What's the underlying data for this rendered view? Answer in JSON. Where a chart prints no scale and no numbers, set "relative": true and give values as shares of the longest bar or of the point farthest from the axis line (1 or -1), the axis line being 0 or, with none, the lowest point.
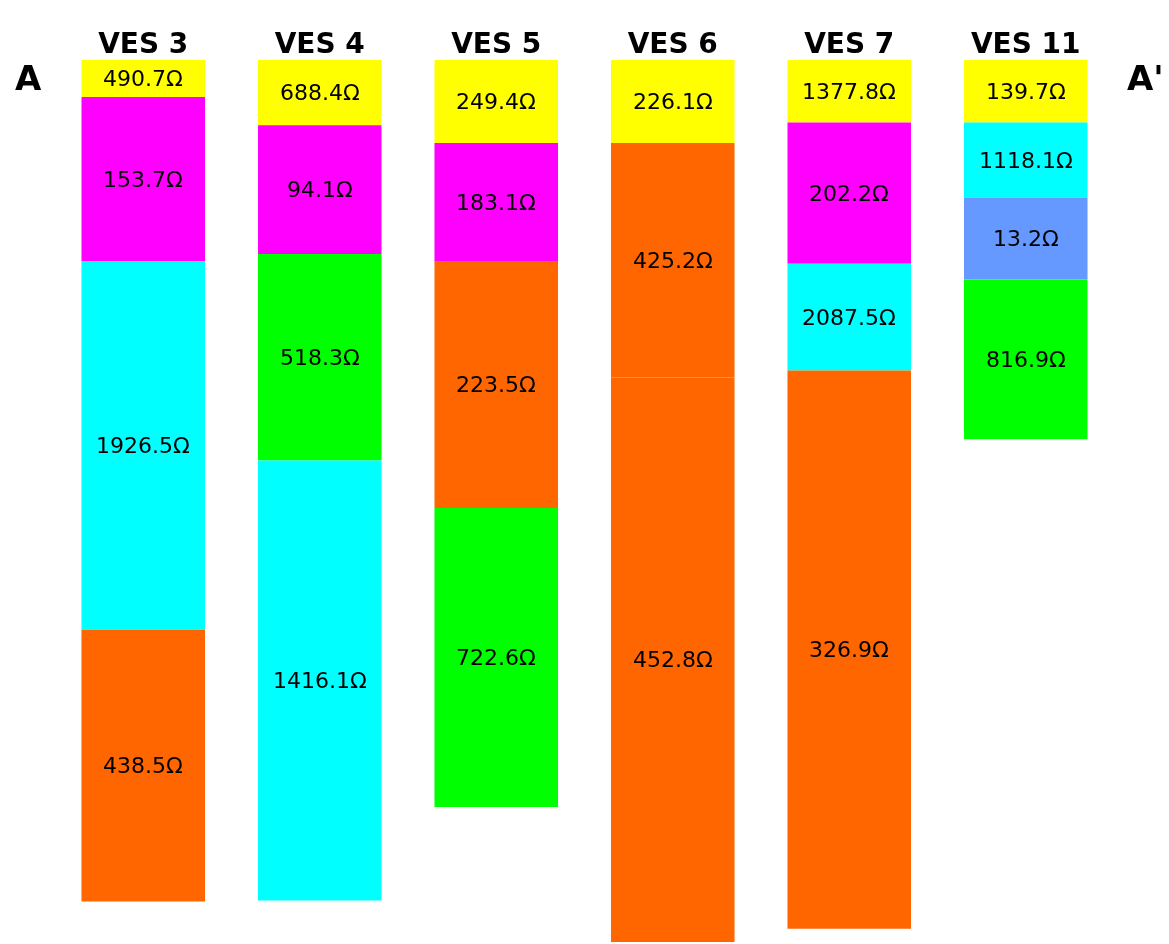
{
  "chart_data": {
    "type": "bar",
    "stacked": true,
    "relative": true,
    "categories": [
      "VES 3",
      "VES 4",
      "VES 5",
      "VES 6",
      "VES 7",
      "VES 11"
    ],
    "series": [
      {
        "colors": [
          "#ffff00",
          "#ffff00",
          "#ffff00",
          "#ffff00",
          "#ffff00",
          "#ffff00"
        ],
        "values": [
          -0.042,
          -0.074,
          -0.094,
          -0.094,
          -0.071,
          -0.071
        ]
      },
      {
        "colors": [
          "#ff00ff",
          "#ff00ff",
          "#ff00ff",
          "#ff6600",
          "#ff00ff",
          "#00ffff"
        ],
        "values": [
          -0.186,
          -0.146,
          -0.134,
          -0.266,
          -0.16,
          -0.085
        ]
      },
      {
        "colors": [
          "#00ffff",
          "#00ff00",
          "#ff6600",
          "#ff6600",
          "#00ffff",
          "#6699ff"
        ],
        "values": [
          -0.418,
          -0.234,
          -0.28,
          -0.64,
          -0.121,
          -0.093
        ]
      },
      {
        "colors": [
          "#ff6600",
          "#00ffff",
          "#00ff00",
          null,
          "#ff6600",
          "#00ff00"
        ],
        "values": [
          -0.308,
          -0.499,
          -0.339,
          null,
          -0.633,
          -0.181
        ]
      }
    ],
    "annotations": [
      "A",
      "A'",
      "490.7Ω",
      "153.7Ω",
      "1926.5Ω",
      "438.5Ω",
      "688.4Ω",
      "94.1Ω",
      "518.3Ω",
      "1416.1Ω",
      "249.4Ω",
      "183.1Ω",
      "223.5Ω",
      "722.6Ω",
      "226.1Ω",
      "425.2Ω",
      "452.8Ω",
      "1377.8Ω",
      "202.2Ω",
      "2087.5Ω",
      "326.9Ω",
      "139.7Ω",
      "1118.1Ω",
      "13.2Ω",
      "816.9Ω"
    ]
  }
}
